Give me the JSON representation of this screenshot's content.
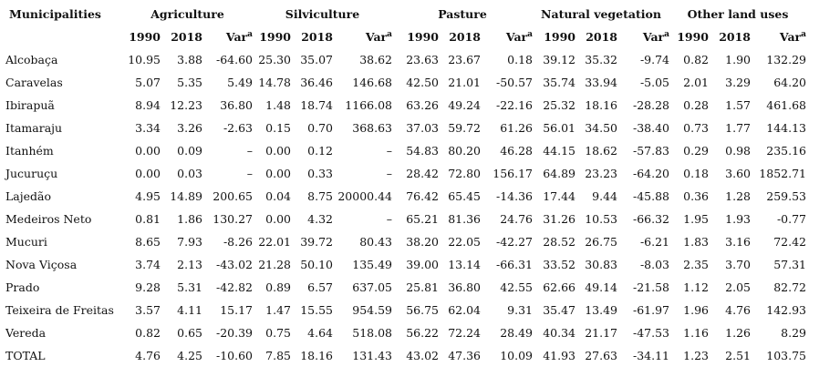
{
  "header": {
    "municipalities": "Municipalities",
    "groups": [
      "Agriculture",
      "Silviculture",
      "Pasture",
      "Natural vegetation",
      "Other land uses"
    ],
    "sub": [
      "1990",
      "2018",
      "Var"
    ],
    "sup": "a"
  },
  "rows": [
    {
      "name": "Alcobaça",
      "values": [
        "10.95",
        "3.88",
        "-64.60",
        "25.30",
        "35.07",
        "38.62",
        "23.63",
        "23.67",
        "0.18",
        "39.12",
        "35.32",
        "-9.74",
        "0.82",
        "1.90",
        "132.29"
      ]
    },
    {
      "name": "Caravelas",
      "values": [
        "5.07",
        "5.35",
        "5.49",
        "14.78",
        "36.46",
        "146.68",
        "42.50",
        "21.01",
        "-50.57",
        "35.74",
        "33.94",
        "-5.05",
        "2.01",
        "3.29",
        "64.20"
      ]
    },
    {
      "name": "Ibirapuã",
      "values": [
        "8.94",
        "12.23",
        "36.80",
        "1.48",
        "18.74",
        "1166.08",
        "63.26",
        "49.24",
        "-22.16",
        "25.32",
        "18.16",
        "-28.28",
        "0.28",
        "1.57",
        "461.68"
      ]
    },
    {
      "name": "Itamaraju",
      "values": [
        "3.34",
        "3.26",
        "-2.63",
        "0.15",
        "0.70",
        "368.63",
        "37.03",
        "59.72",
        "61.26",
        "56.01",
        "34.50",
        "-38.40",
        "0.73",
        "1.77",
        "144.13"
      ]
    },
    {
      "name": "Itanhém",
      "values": [
        "0.00",
        "0.09",
        "–",
        "0.00",
        "0.12",
        "–",
        "54.83",
        "80.20",
        "46.28",
        "44.15",
        "18.62",
        "-57.83",
        "0.29",
        "0.98",
        "235.16"
      ]
    },
    {
      "name": "Jucuruçu",
      "values": [
        "0.00",
        "0.03",
        "–",
        "0.00",
        "0.33",
        "–",
        "28.42",
        "72.80",
        "156.17",
        "64.89",
        "23.23",
        "-64.20",
        "0.18",
        "3.60",
        "1852.71"
      ]
    },
    {
      "name": "Lajedão",
      "values": [
        "4.95",
        "14.89",
        "200.65",
        "0.04",
        "8.75",
        "20000.44",
        "76.42",
        "65.45",
        "-14.36",
        "17.44",
        "9.44",
        "-45.88",
        "0.36",
        "1.28",
        "259.53"
      ]
    },
    {
      "name": "Medeiros Neto",
      "values": [
        "0.81",
        "1.86",
        "130.27",
        "0.00",
        "4.32",
        "–",
        "65.21",
        "81.36",
        "24.76",
        "31.26",
        "10.53",
        "-66.32",
        "1.95",
        "1.93",
        "-0.77"
      ]
    },
    {
      "name": "Mucuri",
      "values": [
        "8.65",
        "7.93",
        "-8.26",
        "22.01",
        "39.72",
        "80.43",
        "38.20",
        "22.05",
        "-42.27",
        "28.52",
        "26.75",
        "-6.21",
        "1.83",
        "3.16",
        "72.42"
      ]
    },
    {
      "name": "Nova Viçosa",
      "values": [
        "3.74",
        "2.13",
        "-43.02",
        "21.28",
        "50.10",
        "135.49",
        "39.00",
        "13.14",
        "-66.31",
        "33.52",
        "30.83",
        "-8.03",
        "2.35",
        "3.70",
        "57.31"
      ]
    },
    {
      "name": "Prado",
      "values": [
        "9.28",
        "5.31",
        "-42.82",
        "0.89",
        "6.57",
        "637.05",
        "25.81",
        "36.80",
        "42.55",
        "62.66",
        "49.14",
        "-21.58",
        "1.12",
        "2.05",
        "82.72"
      ]
    },
    {
      "name": "Teixeira de Freitas",
      "values": [
        "3.57",
        "4.11",
        "15.17",
        "1.47",
        "15.55",
        "954.59",
        "56.75",
        "62.04",
        "9.31",
        "35.47",
        "13.49",
        "-61.97",
        "1.96",
        "4.76",
        "142.93"
      ]
    },
    {
      "name": "Vereda",
      "values": [
        "0.82",
        "0.65",
        "-20.39",
        "0.75",
        "4.64",
        "518.08",
        "56.22",
        "72.24",
        "28.49",
        "40.34",
        "21.17",
        "-47.53",
        "1.16",
        "1.26",
        "8.29"
      ]
    },
    {
      "name": "TOTAL",
      "values": [
        "4.76",
        "4.25",
        "-10.60",
        "7.85",
        "18.16",
        "131.43",
        "43.02",
        "47.36",
        "10.09",
        "41.93",
        "27.63",
        "-34.11",
        "1.23",
        "2.51",
        "103.75"
      ]
    }
  ]
}
